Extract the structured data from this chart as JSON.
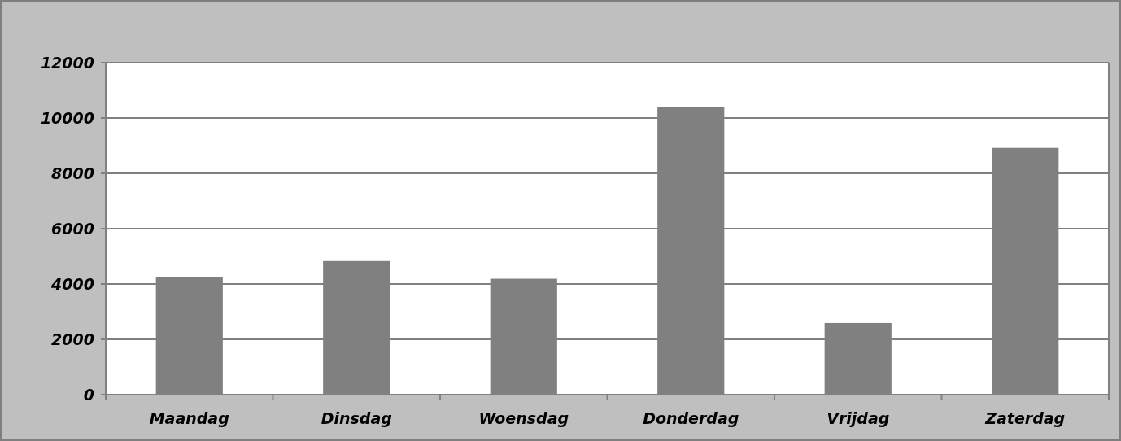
{
  "chart_data": {
    "type": "bar",
    "categories": [
      "Maandag",
      "Dinsdag",
      "Woensdag",
      "Donderdag",
      "Vrijdag",
      "Zaterdag"
    ],
    "values": [
      4260,
      4830,
      4190,
      10410,
      2590,
      8920
    ],
    "color": "#808080",
    "ylim": [
      0,
      12000
    ],
    "yticks": [
      0,
      2000,
      4000,
      6000,
      8000,
      10000,
      12000
    ],
    "grid": "y"
  }
}
